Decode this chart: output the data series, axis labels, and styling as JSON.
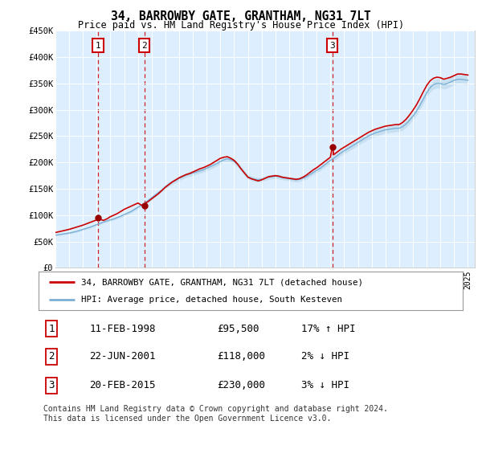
{
  "title": "34, BARROWBY GATE, GRANTHAM, NG31 7LT",
  "subtitle": "Price paid vs. HM Land Registry's House Price Index (HPI)",
  "ylim": [
    0,
    450000
  ],
  "yticks": [
    0,
    50000,
    100000,
    150000,
    200000,
    250000,
    300000,
    350000,
    400000,
    450000
  ],
  "ytick_labels": [
    "£0",
    "£50K",
    "£100K",
    "£150K",
    "£200K",
    "£250K",
    "£300K",
    "£350K",
    "£400K",
    "£450K"
  ],
  "xlim_start": 1995.0,
  "xlim_end": 2025.5,
  "plot_bg_color": "#ddeeff",
  "grid_color": "#ffffff",
  "hpi_color": "#7bafd4",
  "hpi_fill_color": "#c5dff0",
  "price_color": "#cc0000",
  "sale_dates": [
    1998.1,
    2001.47,
    2015.13
  ],
  "sale_prices": [
    95500,
    118000,
    230000
  ],
  "sale_labels": [
    "1",
    "2",
    "3"
  ],
  "legend_line1": "34, BARROWBY GATE, GRANTHAM, NG31 7LT (detached house)",
  "legend_line2": "HPI: Average price, detached house, South Kesteven",
  "table_data": [
    [
      "1",
      "11-FEB-1998",
      "£95,500",
      "17% ↑ HPI"
    ],
    [
      "2",
      "22-JUN-2001",
      "£118,000",
      "2% ↓ HPI"
    ],
    [
      "3",
      "20-FEB-2015",
      "£230,000",
      "3% ↓ HPI"
    ]
  ],
  "footnote": "Contains HM Land Registry data © Crown copyright and database right 2024.\nThis data is licensed under the Open Government Licence v3.0.",
  "hpi_years": [
    1995.0,
    1995.25,
    1995.5,
    1995.75,
    1996.0,
    1996.25,
    1996.5,
    1996.75,
    1997.0,
    1997.25,
    1997.5,
    1997.75,
    1998.0,
    1998.25,
    1998.5,
    1998.75,
    1999.0,
    1999.25,
    1999.5,
    1999.75,
    2000.0,
    2000.25,
    2000.5,
    2000.75,
    2001.0,
    2001.25,
    2001.5,
    2001.75,
    2002.0,
    2002.25,
    2002.5,
    2002.75,
    2003.0,
    2003.25,
    2003.5,
    2003.75,
    2004.0,
    2004.25,
    2004.5,
    2004.75,
    2005.0,
    2005.25,
    2005.5,
    2005.75,
    2006.0,
    2006.25,
    2006.5,
    2006.75,
    2007.0,
    2007.25,
    2007.5,
    2007.75,
    2008.0,
    2008.25,
    2008.5,
    2008.75,
    2009.0,
    2009.25,
    2009.5,
    2009.75,
    2010.0,
    2010.25,
    2010.5,
    2010.75,
    2011.0,
    2011.25,
    2011.5,
    2011.75,
    2012.0,
    2012.25,
    2012.5,
    2012.75,
    2013.0,
    2013.25,
    2013.5,
    2013.75,
    2014.0,
    2014.25,
    2014.5,
    2014.75,
    2015.0,
    2015.25,
    2015.5,
    2015.75,
    2016.0,
    2016.25,
    2016.5,
    2016.75,
    2017.0,
    2017.25,
    2017.5,
    2017.75,
    2018.0,
    2018.25,
    2018.5,
    2018.75,
    2019.0,
    2019.25,
    2019.5,
    2019.75,
    2020.0,
    2020.25,
    2020.5,
    2020.75,
    2021.0,
    2021.25,
    2021.5,
    2021.75,
    2022.0,
    2022.25,
    2022.5,
    2022.75,
    2023.0,
    2023.25,
    2023.5,
    2023.75,
    2024.0,
    2024.25,
    2024.5,
    2024.75,
    2025.0
  ],
  "hpi_values": [
    62000,
    63000,
    64000,
    65000,
    66000,
    67500,
    69000,
    71000,
    73000,
    75000,
    77000,
    79500,
    82000,
    84500,
    87000,
    89000,
    91000,
    93000,
    95500,
    98000,
    101000,
    104000,
    107000,
    111000,
    115000,
    119000,
    123000,
    128000,
    133000,
    138000,
    143000,
    148000,
    154000,
    159000,
    163000,
    166000,
    170000,
    173000,
    176000,
    178000,
    180000,
    182000,
    184000,
    186000,
    189000,
    192000,
    195000,
    198000,
    202000,
    205000,
    207000,
    205000,
    202000,
    196000,
    188000,
    180000,
    173000,
    170000,
    168000,
    167000,
    168000,
    170000,
    172000,
    173000,
    174000,
    173000,
    171000,
    170000,
    169000,
    168000,
    167000,
    168000,
    170000,
    173000,
    177000,
    181000,
    185000,
    189000,
    194000,
    199000,
    204000,
    208000,
    213000,
    218000,
    222000,
    226000,
    230000,
    234000,
    238000,
    242000,
    246000,
    250000,
    253000,
    256000,
    258000,
    260000,
    262000,
    263000,
    264000,
    265000,
    265000,
    268000,
    273000,
    280000,
    288000,
    297000,
    308000,
    320000,
    332000,
    342000,
    348000,
    350000,
    350000,
    348000,
    350000,
    353000,
    356000,
    358000,
    358000,
    357000,
    356000
  ],
  "price_years": [
    1995.0,
    1995.25,
    1995.5,
    1995.75,
    1996.0,
    1996.25,
    1996.5,
    1996.75,
    1997.0,
    1997.25,
    1997.5,
    1997.75,
    1998.0,
    1998.1,
    1998.25,
    1998.5,
    1998.75,
    1999.0,
    1999.25,
    1999.5,
    1999.75,
    2000.0,
    2000.25,
    2000.5,
    2000.75,
    2001.0,
    2001.25,
    2001.47,
    2001.5,
    2001.75,
    2002.0,
    2002.25,
    2002.5,
    2002.75,
    2003.0,
    2003.25,
    2003.5,
    2003.75,
    2004.0,
    2004.25,
    2004.5,
    2004.75,
    2005.0,
    2005.25,
    2005.5,
    2005.75,
    2006.0,
    2006.25,
    2006.5,
    2006.75,
    2007.0,
    2007.25,
    2007.5,
    2007.75,
    2008.0,
    2008.25,
    2008.5,
    2008.75,
    2009.0,
    2009.25,
    2009.5,
    2009.75,
    2010.0,
    2010.25,
    2010.5,
    2010.75,
    2011.0,
    2011.25,
    2011.5,
    2011.75,
    2012.0,
    2012.25,
    2012.5,
    2012.75,
    2013.0,
    2013.25,
    2013.5,
    2013.75,
    2014.0,
    2014.25,
    2014.5,
    2014.75,
    2015.0,
    2015.13,
    2015.25,
    2015.5,
    2015.75,
    2016.0,
    2016.25,
    2016.5,
    2016.75,
    2017.0,
    2017.25,
    2017.5,
    2017.75,
    2018.0,
    2018.25,
    2018.5,
    2018.75,
    2019.0,
    2019.25,
    2019.5,
    2019.75,
    2020.0,
    2020.25,
    2020.5,
    2020.75,
    2021.0,
    2021.25,
    2021.5,
    2021.75,
    2022.0,
    2022.25,
    2022.5,
    2022.75,
    2023.0,
    2023.25,
    2023.5,
    2023.75,
    2024.0,
    2024.25,
    2024.5,
    2024.75,
    2025.0
  ],
  "price_values": [
    67000,
    68500,
    70000,
    71500,
    73000,
    75000,
    77000,
    79000,
    81000,
    83500,
    86000,
    88500,
    91000,
    95500,
    92000,
    90000,
    93000,
    97000,
    100000,
    103000,
    107000,
    111000,
    114000,
    117000,
    120000,
    123000,
    119000,
    118000,
    122000,
    126000,
    131000,
    136000,
    141000,
    147000,
    153000,
    158000,
    163000,
    167000,
    171000,
    174000,
    177000,
    179000,
    182000,
    185000,
    188000,
    190000,
    193000,
    196000,
    200000,
    204000,
    208000,
    210000,
    211000,
    208000,
    204000,
    197000,
    188000,
    180000,
    172000,
    169000,
    167000,
    165000,
    167000,
    170000,
    173000,
    174000,
    175000,
    174000,
    172000,
    171000,
    170000,
    169000,
    168000,
    169000,
    172000,
    176000,
    181000,
    186000,
    190000,
    195000,
    200000,
    205000,
    210000,
    230000,
    215000,
    220000,
    225000,
    229000,
    233000,
    237000,
    241000,
    245000,
    249000,
    253000,
    257000,
    260000,
    263000,
    265000,
    267000,
    269000,
    270000,
    271000,
    272000,
    272000,
    276000,
    282000,
    290000,
    299000,
    309000,
    321000,
    334000,
    346000,
    355000,
    360000,
    362000,
    361000,
    358000,
    360000,
    362000,
    365000,
    368000,
    368000,
    367000,
    366000
  ]
}
